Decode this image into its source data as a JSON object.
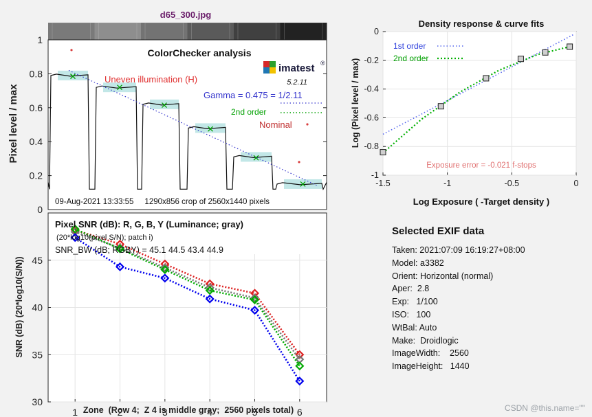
{
  "chart_data": [
    {
      "id": "pixel_level",
      "type": "line",
      "title": "ColorChecker analysis",
      "file_title": "d65_300.jpg",
      "ylabel": "Pixel level / max",
      "xlabel": "",
      "ylim": [
        0,
        1
      ],
      "yticks": [
        0,
        0.2,
        0.4,
        0.6,
        0.8,
        1
      ],
      "ytick_labels": [
        "0",
        "0.2",
        "0.4",
        "0.6",
        "0.8",
        "1"
      ],
      "grayscale_strip": [
        "#7a7a7a",
        "#8e8e8e",
        "#737373",
        "#5a5a5a",
        "#404040",
        "#222222"
      ],
      "patch_levels": [
        0.79,
        0.72,
        0.62,
        0.48,
        0.31,
        0.15
      ],
      "measured_x": [
        0.785,
        0.72,
        0.615,
        0.475,
        0.305,
        0.15
      ],
      "nominal": [
        0.94,
        0.28
      ],
      "brand": "imatest",
      "version": "5.2.11",
      "annotations": {
        "uneven": "Uneven illumination (H)",
        "gamma": "Gamma = 0.475 = 1/2.11",
        "second_order": "2nd order",
        "nominal": "Nominal"
      },
      "footer": "09-Aug-2021 13:33:55     1290x856 crop of 2560x1440 pixels",
      "colors": {
        "gamma": "#3333cc",
        "second_order": "#00a000",
        "nominal": "#d94040",
        "uneven": "#e03030",
        "highlight": "#8fd3d3"
      }
    },
    {
      "id": "density_response",
      "type": "line",
      "title": "Density response & curve fits",
      "xlabel": "Log Exposure ( -Target density )",
      "ylabel": "Log (Pixel level / max)",
      "xlim": [
        -1.5,
        0
      ],
      "ylim": [
        -1,
        0
      ],
      "xticks": [
        -1.5,
        -1,
        -0.5,
        0
      ],
      "xtick_labels": [
        "-1.5",
        "-1",
        "-0.5",
        "0"
      ],
      "yticks": [
        -1,
        -0.8,
        -0.6,
        -0.4,
        -0.2,
        0
      ],
      "ytick_labels": [
        "-1",
        "-0.8",
        "-0.6",
        "-0.4",
        "-0.2",
        "0"
      ],
      "points": [
        {
          "x": -1.5,
          "y": -0.84
        },
        {
          "x": -1.05,
          "y": -0.52
        },
        {
          "x": -0.7,
          "y": -0.325
        },
        {
          "x": -0.43,
          "y": -0.19
        },
        {
          "x": -0.24,
          "y": -0.145
        },
        {
          "x": -0.05,
          "y": -0.105
        }
      ],
      "series": [
        {
          "name": "1st order",
          "x": [
            -1.5,
            -0.02
          ],
          "y": [
            -0.715,
            -0.02
          ],
          "color": "#5566ee"
        },
        {
          "name": "2nd order",
          "x": [
            -1.5,
            -1.2,
            -0.9,
            -0.6,
            -0.3,
            -0.05
          ],
          "y": [
            -0.845,
            -0.61,
            -0.42,
            -0.27,
            -0.16,
            -0.105
          ],
          "color": "#00b000"
        }
      ],
      "note": "Exposure error = -0.021 f-stops",
      "note_color": "#e07070"
    },
    {
      "id": "snr",
      "type": "line",
      "title": "Pixel SNR (dB): R, G, B, Y (Luminance; gray)",
      "subtitle": "(20*log10(pixel S/N); patch i)",
      "summary": "SNR_BW (dB; RGBY) = 45.1 44.5 43.4 44.9",
      "xlabel": "Zone  (Row 4;  Z 4 is middle gray;  2560 pixels total)",
      "ylabel": "SNR (dB) (20*log10(S/N))",
      "x": [
        1,
        2,
        3,
        4,
        5,
        6
      ],
      "xlim": [
        0.4,
        6.6
      ],
      "ylim": [
        30,
        50
      ],
      "yticks": [
        30,
        35,
        40,
        45
      ],
      "ytick_labels": [
        "30",
        "35",
        "40",
        "45"
      ],
      "xtick_labels": [
        "1",
        "2",
        "3",
        "4",
        "5",
        "6"
      ],
      "series": [
        {
          "name": "R",
          "values": [
            48.2,
            46.7,
            44.6,
            42.5,
            41.5,
            35.0
          ],
          "color": "#dd2222"
        },
        {
          "name": "Y",
          "values": [
            48.0,
            46.3,
            44.2,
            42.1,
            41.0,
            34.5
          ],
          "color": "#777777"
        },
        {
          "name": "G",
          "values": [
            48.3,
            46.2,
            44.0,
            41.8,
            40.8,
            33.8
          ],
          "color": "#00aa00"
        },
        {
          "name": "B",
          "values": [
            47.4,
            44.3,
            43.1,
            40.9,
            39.7,
            32.2
          ],
          "color": "#0000ee"
        }
      ]
    }
  ],
  "exif": {
    "title": "Selected EXIF data",
    "lines": [
      "Taken: 2021:07:09 16:19:27+08:00",
      "Model: a3382",
      "Orient: Horizontal (normal)",
      "Aper:  2.8",
      "Exp:   1/100",
      "ISO:   100",
      "WtBal: Auto",
      "Make:  Droidlogic",
      "ImageWidth:    2560",
      "ImageHeight:   1440"
    ]
  },
  "watermark": "CSDN @this.name=\"\""
}
